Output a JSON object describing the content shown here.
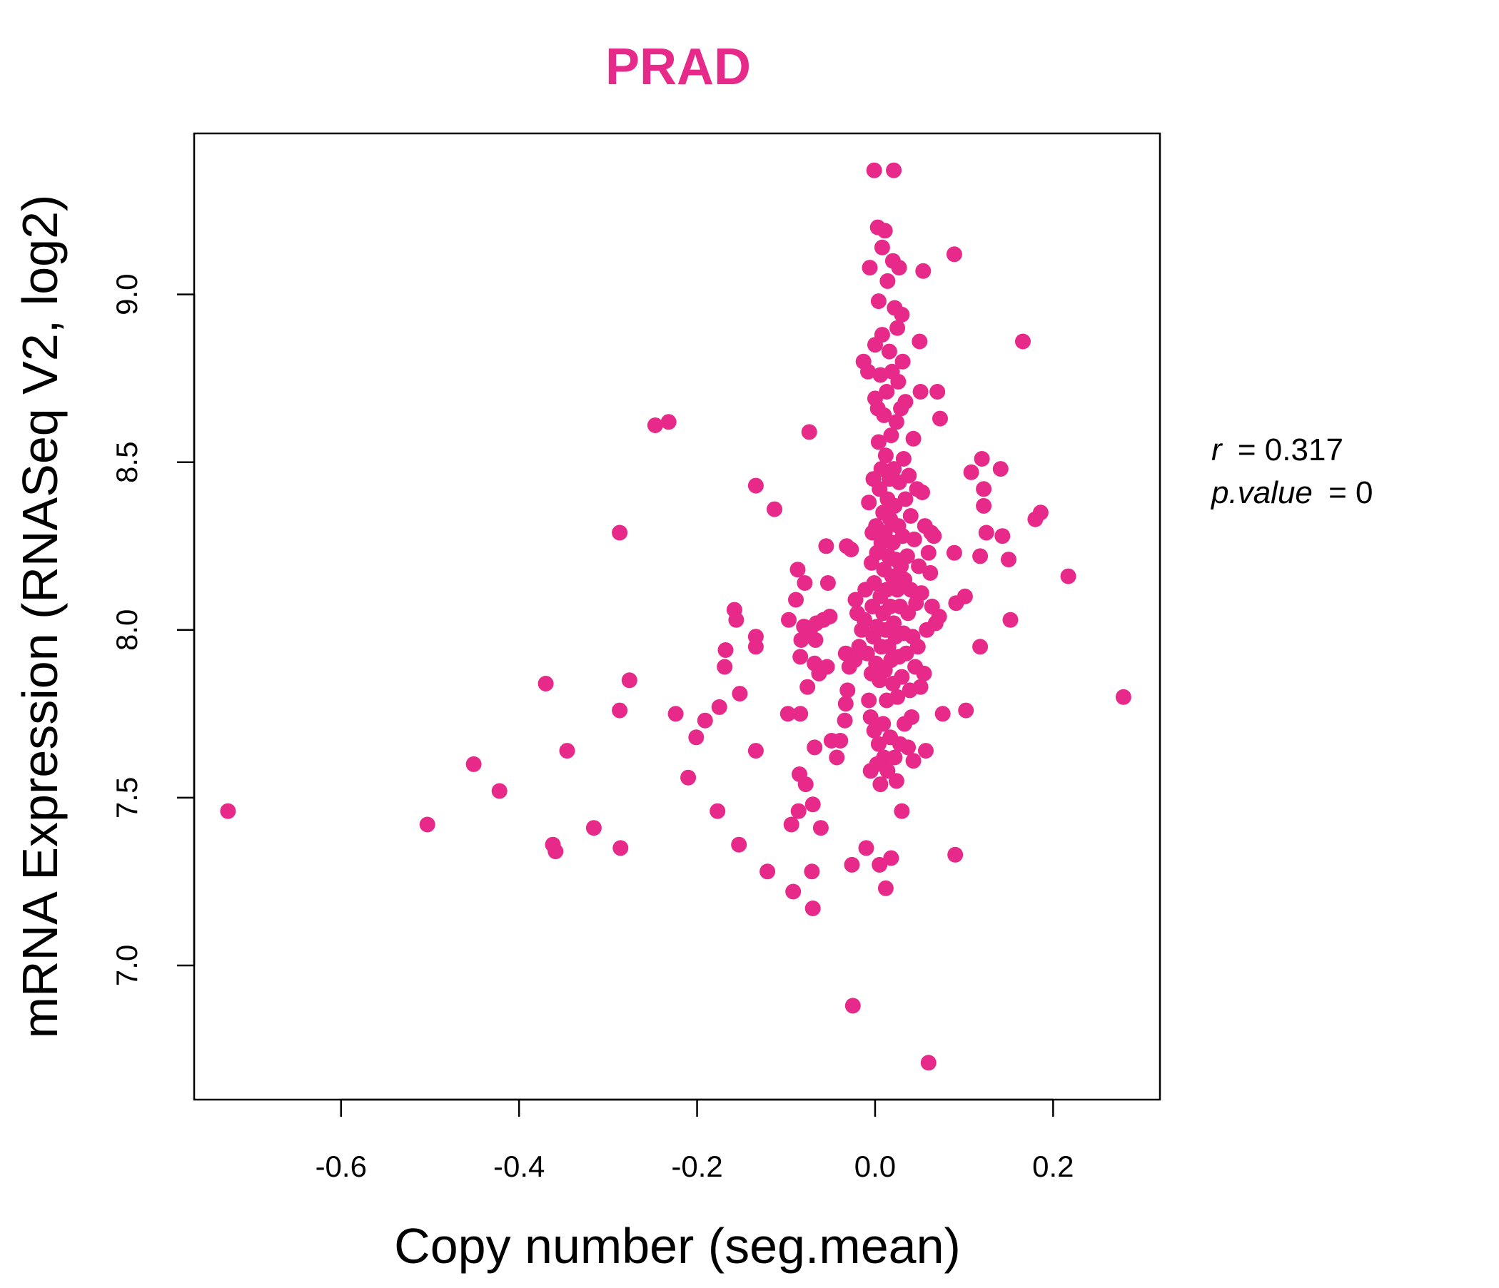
{
  "chart_data": {
    "type": "scatter",
    "title": "PRAD",
    "xlabel": "Copy number (seg.mean)",
    "ylabel": "mRNA Expression (RNASeq V2, log2)",
    "xlim": [
      -0.765,
      0.32
    ],
    "ylim": [
      6.6,
      9.48
    ],
    "xticks": [
      -0.6,
      -0.4,
      -0.2,
      0.0,
      0.2
    ],
    "xtick_labels": [
      "-0.6",
      "-0.4",
      "-0.2",
      "0.0",
      "0.2"
    ],
    "yticks": [
      7.0,
      7.5,
      8.0,
      8.5,
      9.0
    ],
    "ytick_labels": [
      "7.0",
      "7.5",
      "8.0",
      "8.5",
      "9.0"
    ],
    "grid": false,
    "point_color": "#E7298A",
    "title_color": "#E7298A",
    "annotations": {
      "r_label": "r",
      "r_value": "= 0.317",
      "p_label": "p.value",
      "p_value": "= 0"
    },
    "points": [
      [
        -0.727,
        7.46
      ],
      [
        -0.503,
        7.42
      ],
      [
        -0.451,
        7.6
      ],
      [
        -0.422,
        7.52
      ],
      [
        -0.37,
        7.84
      ],
      [
        -0.362,
        7.36
      ],
      [
        -0.359,
        7.34
      ],
      [
        -0.346,
        7.64
      ],
      [
        -0.316,
        7.41
      ],
      [
        -0.286,
        7.35
      ],
      [
        -0.287,
        7.76
      ],
      [
        -0.287,
        8.29
      ],
      [
        -0.276,
        7.85
      ],
      [
        -0.247,
        8.61
      ],
      [
        -0.232,
        8.62
      ],
      [
        -0.224,
        7.75
      ],
      [
        -0.21,
        7.56
      ],
      [
        -0.201,
        7.68
      ],
      [
        -0.191,
        7.73
      ],
      [
        -0.177,
        7.46
      ],
      [
        -0.175,
        7.77
      ],
      [
        -0.169,
        7.89
      ],
      [
        -0.168,
        7.94
      ],
      [
        -0.158,
        8.06
      ],
      [
        -0.156,
        8.03
      ],
      [
        -0.153,
        7.36
      ],
      [
        -0.152,
        7.81
      ],
      [
        -0.134,
        7.98
      ],
      [
        -0.134,
        7.95
      ],
      [
        -0.134,
        7.64
      ],
      [
        -0.134,
        8.43
      ],
      [
        -0.121,
        7.28
      ],
      [
        -0.113,
        8.36
      ],
      [
        -0.098,
        7.75
      ],
      [
        -0.097,
        8.03
      ],
      [
        -0.094,
        7.42
      ],
      [
        -0.092,
        7.22
      ],
      [
        -0.089,
        8.09
      ],
      [
        -0.087,
        8.18
      ],
      [
        -0.086,
        7.46
      ],
      [
        -0.085,
        7.57
      ],
      [
        -0.084,
        7.75
      ],
      [
        -0.084,
        7.92
      ],
      [
        -0.083,
        7.97
      ],
      [
        -0.08,
        8.01
      ],
      [
        -0.079,
        8.14
      ],
      [
        -0.078,
        7.54
      ],
      [
        -0.076,
        7.83
      ],
      [
        -0.074,
        8.59
      ],
      [
        -0.073,
        8.0
      ],
      [
        -0.071,
        7.28
      ],
      [
        -0.07,
        7.17
      ],
      [
        -0.07,
        7.48
      ],
      [
        -0.068,
        7.65
      ],
      [
        -0.068,
        7.9
      ],
      [
        -0.067,
        7.97
      ],
      [
        -0.066,
        8.02
      ],
      [
        -0.063,
        7.87
      ],
      [
        -0.061,
        7.41
      ],
      [
        -0.058,
        8.03
      ],
      [
        -0.055,
        8.25
      ],
      [
        -0.054,
        7.89
      ],
      [
        -0.053,
        8.14
      ],
      [
        -0.051,
        8.04
      ],
      [
        -0.049,
        7.67
      ],
      [
        -0.043,
        7.62
      ],
      [
        -0.039,
        7.67
      ],
      [
        -0.034,
        7.73
      ],
      [
        -0.033,
        7.78
      ],
      [
        -0.033,
        7.93
      ],
      [
        -0.032,
        8.25
      ],
      [
        -0.031,
        7.82
      ],
      [
        -0.029,
        7.89
      ],
      [
        -0.027,
        8.24
      ],
      [
        -0.026,
        7.3
      ],
      [
        -0.025,
        6.88
      ],
      [
        -0.023,
        7.91
      ],
      [
        -0.022,
        8.09
      ],
      [
        -0.02,
        8.05
      ],
      [
        -0.018,
        7.95
      ],
      [
        -0.015,
        8.0
      ],
      [
        -0.013,
        8.8
      ],
      [
        -0.012,
        8.03
      ],
      [
        -0.011,
        8.12
      ],
      [
        -0.01,
        7.35
      ],
      [
        -0.009,
        7.93
      ],
      [
        -0.008,
        8.77
      ],
      [
        -0.007,
        7.79
      ],
      [
        -0.007,
        8.38
      ],
      [
        -0.006,
        9.08
      ],
      [
        -0.005,
        7.58
      ],
      [
        -0.005,
        7.74
      ],
      [
        -0.004,
        7.87
      ],
      [
        -0.004,
        8.2
      ],
      [
        -0.003,
        8.07
      ],
      [
        -0.003,
        8.29
      ],
      [
        -0.002,
        7.98
      ],
      [
        -0.002,
        8.45
      ],
      [
        -0.001,
        7.7
      ],
      [
        -0.001,
        8.14
      ],
      [
        -0.001,
        9.37
      ],
      [
        0.0,
        8.69
      ],
      [
        0.0,
        8.85
      ],
      [
        0.001,
        7.9
      ],
      [
        0.001,
        8.31
      ],
      [
        0.002,
        7.6
      ],
      [
        0.002,
        8.01
      ],
      [
        0.002,
        8.23
      ],
      [
        0.003,
        8.66
      ],
      [
        0.003,
        9.2
      ],
      [
        0.004,
        7.66
      ],
      [
        0.004,
        8.56
      ],
      [
        0.004,
        8.98
      ],
      [
        0.005,
        7.3
      ],
      [
        0.005,
        7.85
      ],
      [
        0.005,
        8.42
      ],
      [
        0.006,
        7.54
      ],
      [
        0.006,
        8.1
      ],
      [
        0.006,
        8.76
      ],
      [
        0.007,
        7.95
      ],
      [
        0.007,
        8.26
      ],
      [
        0.007,
        8.48
      ],
      [
        0.008,
        8.88
      ],
      [
        0.008,
        9.14
      ],
      [
        0.009,
        7.72
      ],
      [
        0.009,
        8.05
      ],
      [
        0.009,
        8.35
      ],
      [
        0.01,
        7.62
      ],
      [
        0.01,
        8.18
      ],
      [
        0.01,
        8.64
      ],
      [
        0.011,
        7.88
      ],
      [
        0.011,
        8.29
      ],
      [
        0.011,
        9.19
      ],
      [
        0.012,
        7.23
      ],
      [
        0.012,
        8.0
      ],
      [
        0.012,
        8.52
      ],
      [
        0.013,
        7.79
      ],
      [
        0.013,
        8.12
      ],
      [
        0.013,
        8.71
      ],
      [
        0.014,
        7.58
      ],
      [
        0.014,
        8.39
      ],
      [
        0.014,
        9.04
      ],
      [
        0.015,
        7.95
      ],
      [
        0.015,
        8.22
      ],
      [
        0.016,
        8.45
      ],
      [
        0.016,
        8.83
      ],
      [
        0.017,
        7.68
      ],
      [
        0.017,
        8.07
      ],
      [
        0.017,
        8.33
      ],
      [
        0.018,
        7.32
      ],
      [
        0.018,
        7.91
      ],
      [
        0.018,
        8.58
      ],
      [
        0.019,
        8.16
      ],
      [
        0.019,
        8.77
      ],
      [
        0.02,
        7.84
      ],
      [
        0.02,
        8.26
      ],
      [
        0.02,
        9.1
      ],
      [
        0.021,
        8.02
      ],
      [
        0.021,
        8.48
      ],
      [
        0.021,
        9.37
      ],
      [
        0.022,
        7.62
      ],
      [
        0.022,
        8.37
      ],
      [
        0.022,
        8.96
      ],
      [
        0.023,
        7.98
      ],
      [
        0.023,
        8.21
      ],
      [
        0.024,
        7.55
      ],
      [
        0.024,
        8.62
      ],
      [
        0.025,
        7.8
      ],
      [
        0.025,
        8.12
      ],
      [
        0.025,
        8.9
      ],
      [
        0.026,
        8.31
      ],
      [
        0.026,
        8.74
      ],
      [
        0.027,
        7.92
      ],
      [
        0.027,
        8.44
      ],
      [
        0.027,
        9.08
      ],
      [
        0.028,
        7.66
      ],
      [
        0.028,
        8.07
      ],
      [
        0.029,
        8.19
      ],
      [
        0.029,
        8.66
      ],
      [
        0.03,
        7.46
      ],
      [
        0.03,
        7.86
      ],
      [
        0.03,
        8.94
      ],
      [
        0.031,
        8.28
      ],
      [
        0.031,
        8.8
      ],
      [
        0.032,
        7.99
      ],
      [
        0.032,
        8.51
      ],
      [
        0.033,
        7.72
      ],
      [
        0.033,
        8.15
      ],
      [
        0.034,
        8.39
      ],
      [
        0.034,
        8.68
      ],
      [
        0.035,
        7.93
      ],
      [
        0.036,
        8.22
      ],
      [
        0.037,
        7.65
      ],
      [
        0.037,
        8.05
      ],
      [
        0.038,
        8.46
      ],
      [
        0.039,
        7.82
      ],
      [
        0.04,
        8.12
      ],
      [
        0.04,
        8.34
      ],
      [
        0.041,
        7.74
      ],
      [
        0.042,
        7.98
      ],
      [
        0.043,
        8.57
      ],
      [
        0.043,
        7.61
      ],
      [
        0.044,
        8.27
      ],
      [
        0.045,
        7.89
      ],
      [
        0.046,
        8.08
      ],
      [
        0.047,
        8.42
      ],
      [
        0.048,
        7.95
      ],
      [
        0.049,
        8.19
      ],
      [
        0.05,
        8.86
      ],
      [
        0.051,
        7.83
      ],
      [
        0.051,
        8.71
      ],
      [
        0.052,
        8.11
      ],
      [
        0.053,
        8.41
      ],
      [
        0.054,
        9.07
      ],
      [
        0.055,
        7.87
      ],
      [
        0.056,
        8.31
      ],
      [
        0.057,
        7.64
      ],
      [
        0.058,
        8.0
      ],
      [
        0.06,
        6.71
      ],
      [
        0.06,
        8.23
      ],
      [
        0.062,
        8.17
      ],
      [
        0.063,
        8.29
      ],
      [
        0.064,
        8.07
      ],
      [
        0.066,
        8.28
      ],
      [
        0.068,
        8.02
      ],
      [
        0.07,
        8.71
      ],
      [
        0.072,
        8.04
      ],
      [
        0.073,
        8.63
      ],
      [
        0.076,
        7.75
      ],
      [
        0.089,
        8.23
      ],
      [
        0.089,
        9.12
      ],
      [
        0.09,
        7.33
      ],
      [
        0.091,
        8.08
      ],
      [
        0.101,
        8.1
      ],
      [
        0.102,
        7.76
      ],
      [
        0.108,
        8.47
      ],
      [
        0.118,
        8.22
      ],
      [
        0.118,
        7.95
      ],
      [
        0.12,
        8.51
      ],
      [
        0.122,
        8.42
      ],
      [
        0.122,
        8.37
      ],
      [
        0.125,
        8.29
      ],
      [
        0.141,
        8.48
      ],
      [
        0.143,
        8.28
      ],
      [
        0.15,
        8.21
      ],
      [
        0.152,
        8.03
      ],
      [
        0.166,
        8.86
      ],
      [
        0.18,
        8.33
      ],
      [
        0.186,
        8.35
      ],
      [
        0.217,
        8.16
      ],
      [
        0.279,
        7.8
      ]
    ]
  }
}
